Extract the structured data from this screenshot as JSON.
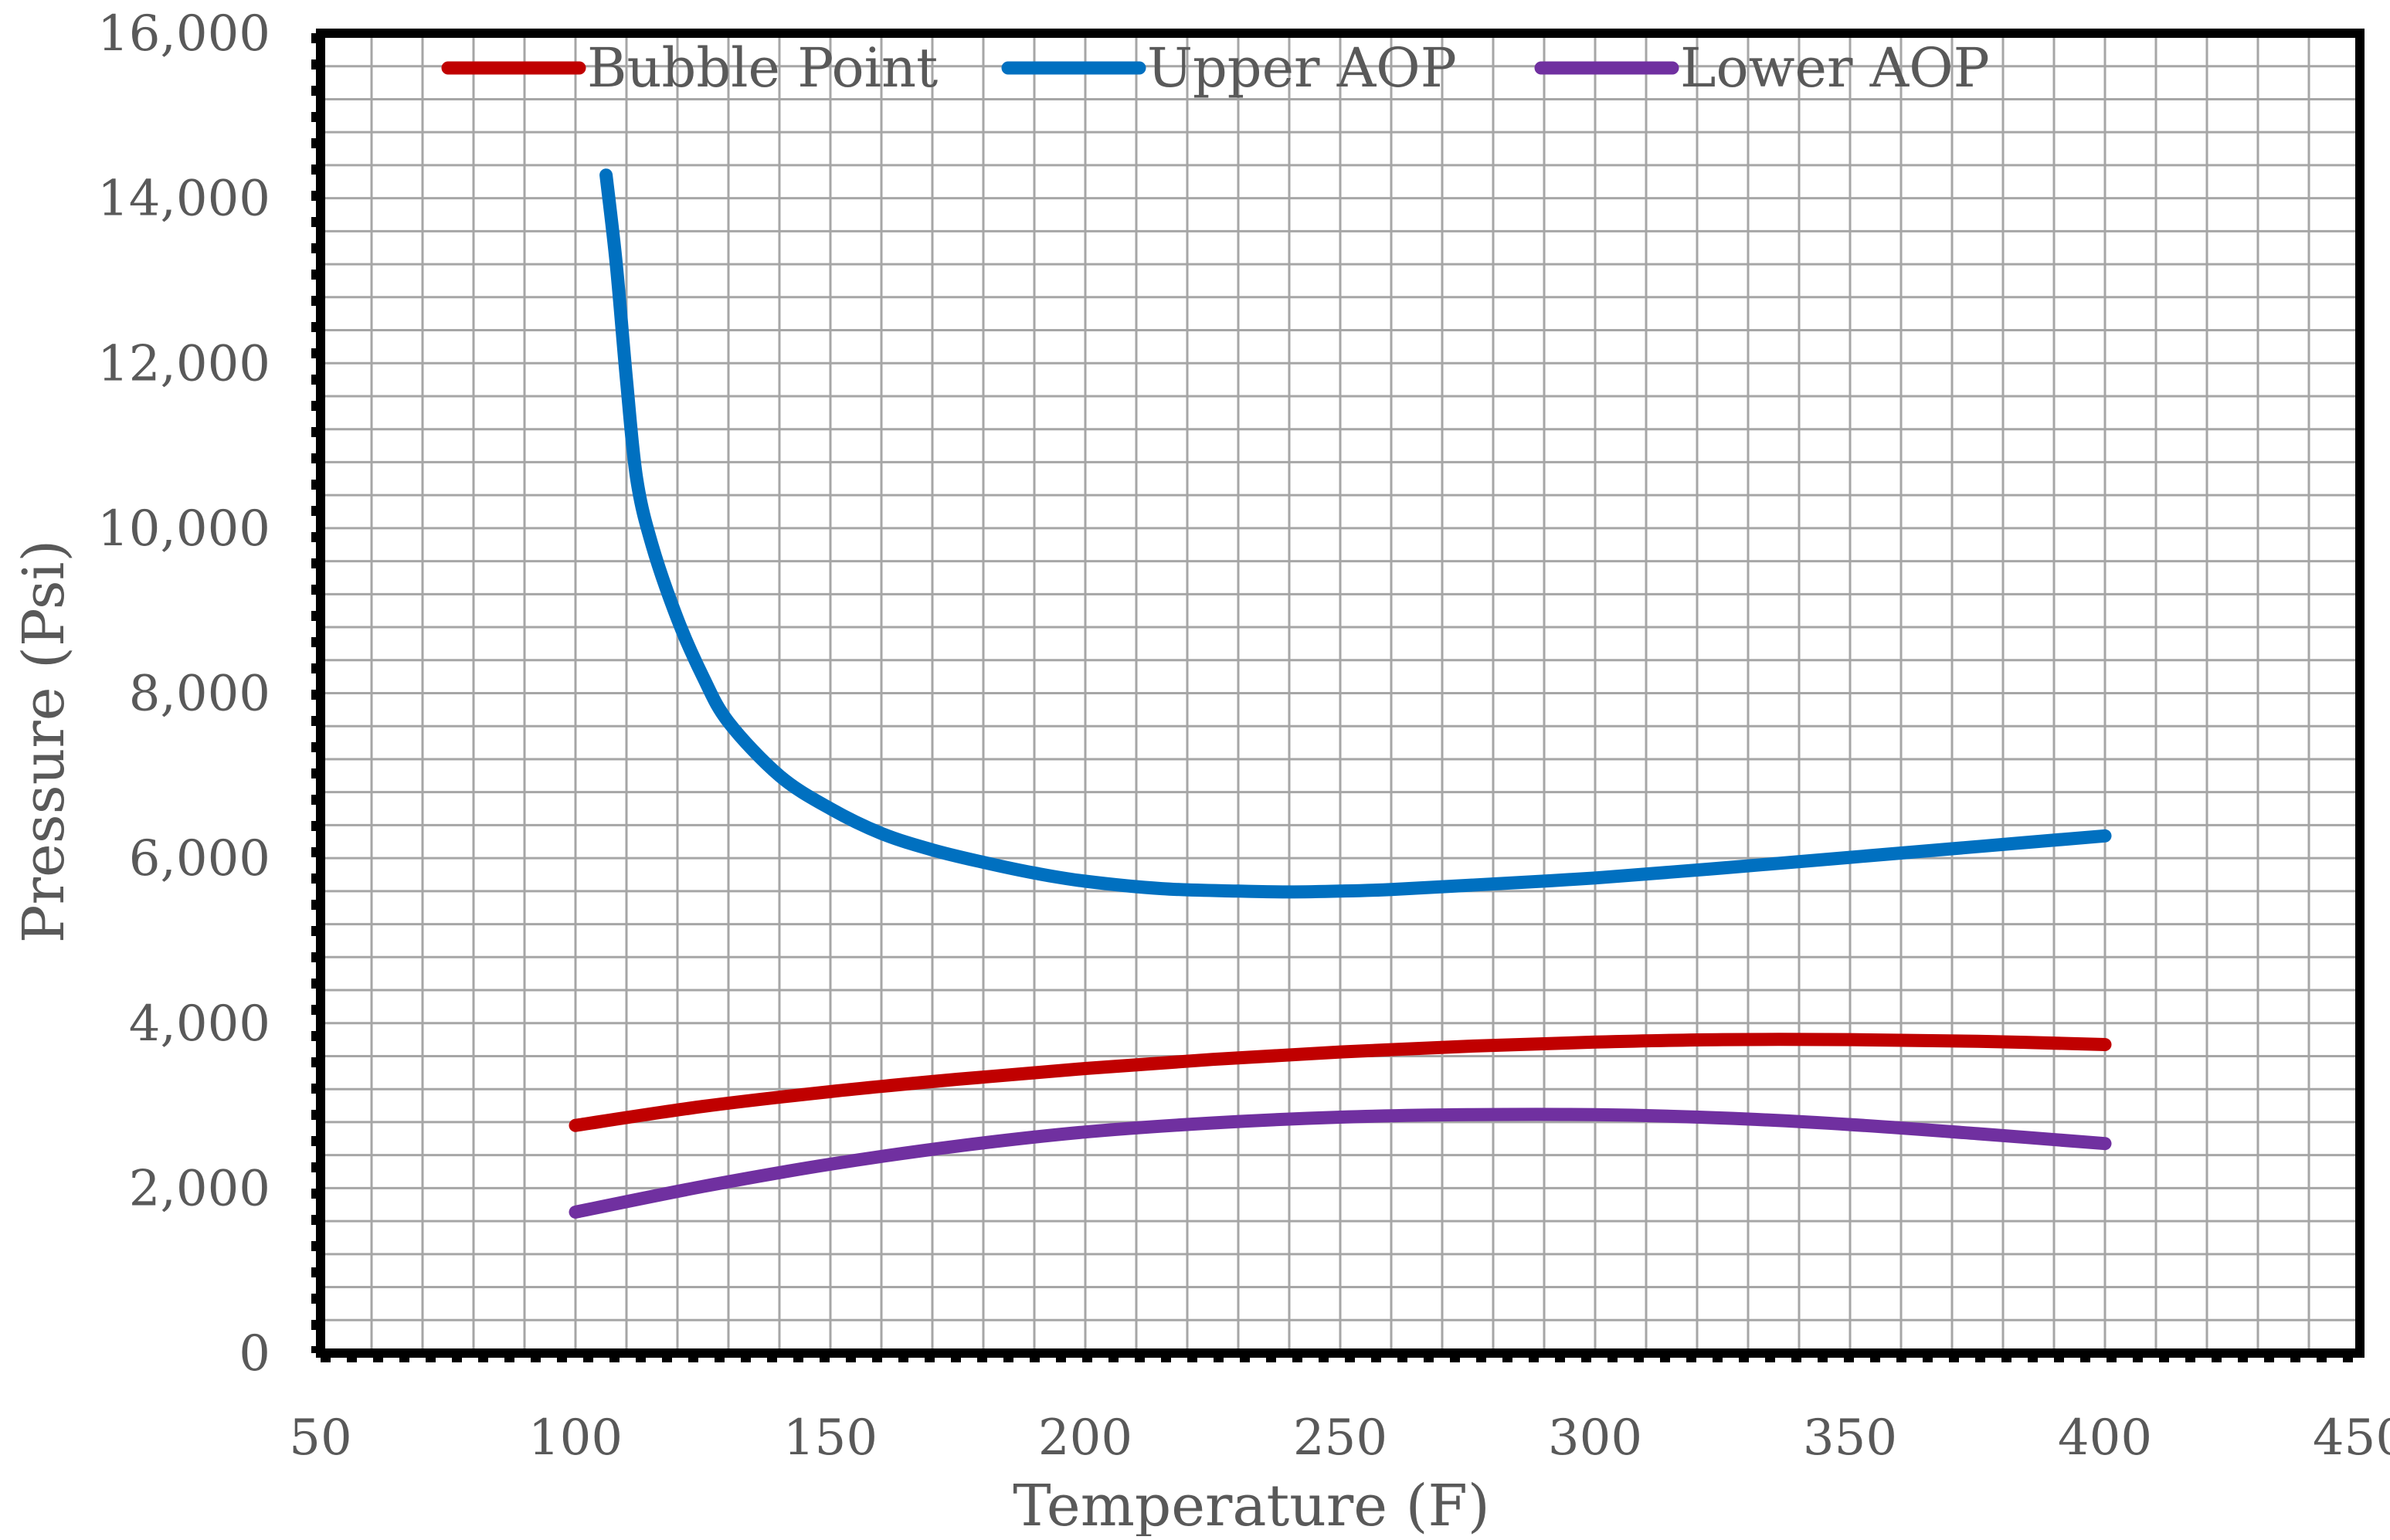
{
  "chart_data": {
    "type": "line",
    "title": "",
    "xlabel": "Temperature (F)",
    "ylabel": "Pressure (Psi)",
    "xlim": [
      50,
      450
    ],
    "ylim": [
      0,
      16000
    ],
    "x_ticks": [
      50,
      100,
      150,
      200,
      250,
      300,
      350,
      400,
      450
    ],
    "x_tick_labels": [
      "50",
      "100",
      "150",
      "200",
      "250",
      "300",
      "350",
      "400",
      "450"
    ],
    "y_ticks": [
      0,
      2000,
      4000,
      6000,
      8000,
      10000,
      12000,
      14000,
      16000
    ],
    "y_tick_labels": [
      "0",
      "2,000",
      "4,000",
      "6,000",
      "8,000",
      "10,000",
      "12,000",
      "14,000",
      "16,000"
    ],
    "grid": true,
    "legend_position": "top",
    "series": [
      {
        "name": "Bubble Point",
        "color": "#C00000",
        "x": [
          100,
          125,
          150,
          175,
          200,
          225,
          250,
          275,
          300,
          325,
          350,
          375,
          400
        ],
        "y": [
          2760,
          2990,
          3170,
          3320,
          3450,
          3560,
          3650,
          3720,
          3770,
          3800,
          3800,
          3780,
          3740
        ]
      },
      {
        "name": "Upper AOP",
        "color": "#0070C0",
        "x": [
          106,
          108,
          110,
          112,
          115,
          120,
          125,
          130,
          140,
          150,
          160,
          170,
          180,
          190,
          200,
          215,
          230,
          240,
          250,
          260,
          275,
          300,
          325,
          350,
          375,
          400
        ],
        "y": [
          14280,
          13200,
          11800,
          10600,
          9800,
          8900,
          8200,
          7650,
          7000,
          6600,
          6300,
          6100,
          5950,
          5820,
          5720,
          5630,
          5600,
          5590,
          5600,
          5620,
          5670,
          5760,
          5880,
          6010,
          6140,
          6270
        ]
      },
      {
        "name": "Lower AOP",
        "color": "#7030A0",
        "x": [
          100,
          125,
          150,
          175,
          200,
          225,
          250,
          275,
          300,
          325,
          350,
          375,
          400
        ],
        "y": [
          1710,
          2020,
          2290,
          2510,
          2680,
          2790,
          2860,
          2890,
          2890,
          2850,
          2770,
          2660,
          2540
        ]
      }
    ]
  }
}
